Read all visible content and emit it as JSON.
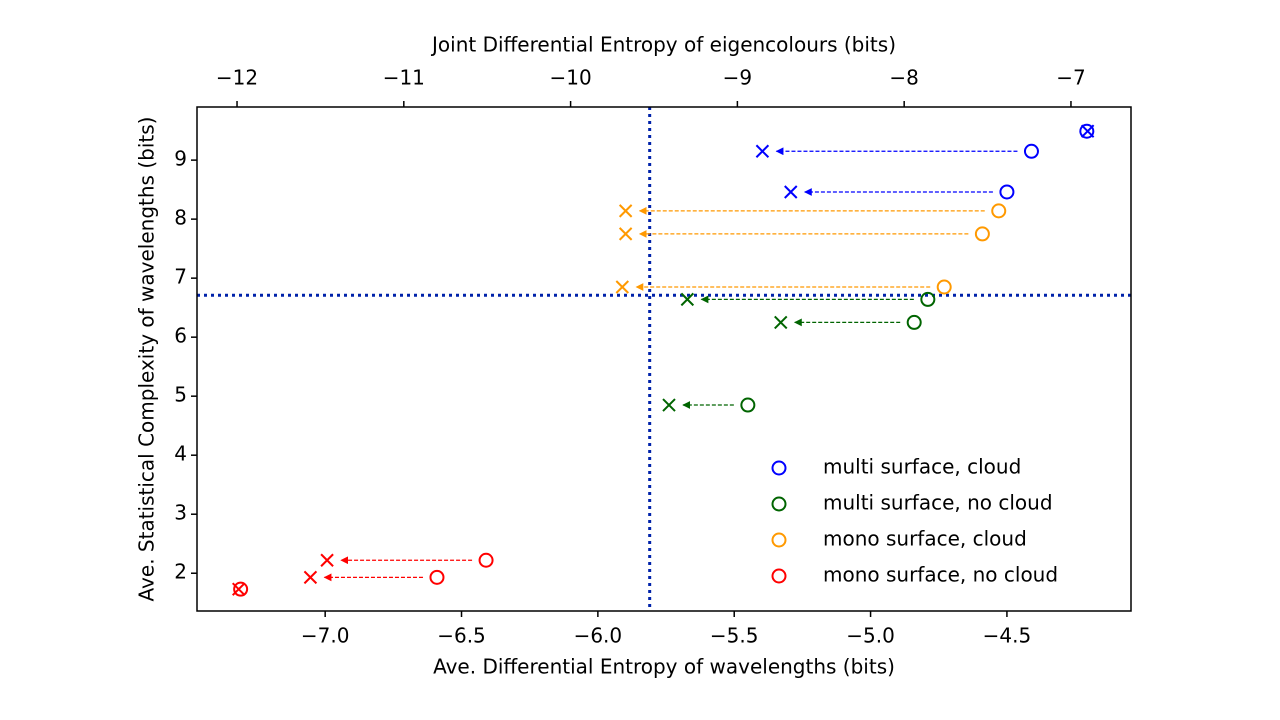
{
  "chart_data": {
    "type": "scatter",
    "xlabel": "Ave. Differential Entropy of wavelengths (bits)",
    "x2label": "Joint Differential Entropy of eigencolours (bits)",
    "ylabel": "Ave. Statistical Complexity of wavelengths (bits)",
    "xlim": [
      -7.47,
      -4.045
    ],
    "x2lim": [
      -12.24,
      -6.64
    ],
    "ylim": [
      1.36,
      9.9
    ],
    "xticks": [
      {
        "value": -7.0,
        "label": "−7.0"
      },
      {
        "value": -6.5,
        "label": "−6.5"
      },
      {
        "value": -6.0,
        "label": "−6.0"
      },
      {
        "value": -5.5,
        "label": "−5.5"
      },
      {
        "value": -5.0,
        "label": "−5.0"
      },
      {
        "value": -4.5,
        "label": "−4.5"
      }
    ],
    "x2ticks": [
      {
        "value": -12,
        "label": "−12"
      },
      {
        "value": -11,
        "label": "−11"
      },
      {
        "value": -10,
        "label": "−10"
      },
      {
        "value": -9,
        "label": "−9"
      },
      {
        "value": -8,
        "label": "−8"
      },
      {
        "value": -7,
        "label": "−7"
      }
    ],
    "yticks": [
      2,
      3,
      4,
      5,
      6,
      7,
      8,
      9
    ],
    "hline": 6.71,
    "vline": -5.81,
    "legend": "lower right",
    "series": [
      {
        "name": "multi surface, cloud",
        "color": "#0000ff",
        "x": [
          -4.41,
          -4.5,
          -4.207
        ],
        "x2": [
          -8.85,
          -8.68,
          -6.9
        ],
        "values": [
          9.15,
          8.46,
          9.49
        ]
      },
      {
        "name": "multi surface, no cloud",
        "color": "#006400",
        "x": [
          -4.79,
          -4.84,
          -5.45
        ],
        "x2": [
          -9.3,
          -8.74,
          -9.41
        ],
        "values": [
          6.64,
          6.25,
          4.85
        ]
      },
      {
        "name": "mono surface, cloud",
        "color": "#ff9900",
        "x": [
          -4.53,
          -4.59,
          -4.73
        ],
        "x2": [
          -9.67,
          -9.67,
          -9.69
        ],
        "values": [
          8.14,
          7.75,
          6.85
        ]
      },
      {
        "name": "mono surface, no cloud",
        "color": "#ff0000",
        "x": [
          -6.41,
          -6.59,
          -7.31
        ],
        "x2": [
          -11.46,
          -11.56,
          -11.99
        ],
        "values": [
          2.22,
          1.93,
          1.73
        ]
      }
    ]
  }
}
